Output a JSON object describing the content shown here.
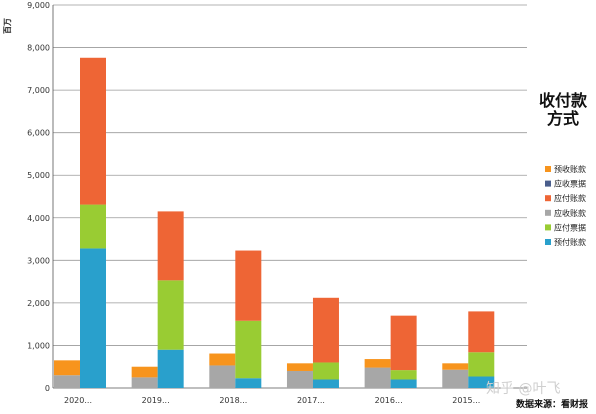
{
  "chart_data": {
    "type": "bar",
    "stacked": true,
    "grouped_pairs": true,
    "ylabel": "百万",
    "ylim": [
      0,
      9000
    ],
    "ytick_step": 1000,
    "categories": [
      "2020...",
      "2019...",
      "2018...",
      "2017...",
      "2016...",
      "2015..."
    ],
    "legend_title": "收付款方式",
    "legend_title_lines": [
      "收付款",
      "方式"
    ],
    "legend_position": "right",
    "series": [
      {
        "name": "预收账款",
        "color": "#f7941d",
        "bar": "left",
        "values": [
          350,
          250,
          280,
          180,
          200,
          150
        ]
      },
      {
        "name": "应收票据",
        "color": "#4a5e8c",
        "bar": "left",
        "values": [
          0,
          0,
          0,
          0,
          0,
          0
        ]
      },
      {
        "name": "应付账款",
        "color": "#ee6535",
        "bar": "right",
        "values": [
          3450,
          1620,
          1650,
          1520,
          1280,
          960
        ]
      },
      {
        "name": "应收账款",
        "color": "#a7a7a7",
        "bar": "left",
        "values": [
          300,
          250,
          530,
          400,
          480,
          430
        ]
      },
      {
        "name": "应付票据",
        "color": "#99cc33",
        "bar": "right",
        "values": [
          1030,
          1630,
          1350,
          400,
          220,
          570
        ]
      },
      {
        "name": "预付账款",
        "color": "#29a0cc",
        "bar": "right",
        "values": [
          3280,
          900,
          230,
          200,
          200,
          270
        ]
      }
    ],
    "grid": true
  },
  "footer": {
    "source": "数据来源：看财报"
  },
  "watermark": "知乎 @叶飞"
}
